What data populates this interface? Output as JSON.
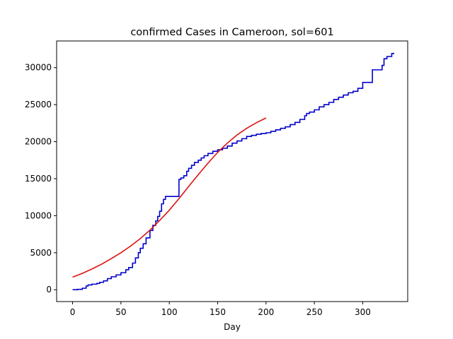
{
  "chart_data": {
    "type": "line",
    "title": "confirmed Cases in Cameroon, sol=601",
    "xlabel": "Day",
    "ylabel": "",
    "xlim": [
      -16.5,
      346.5
    ],
    "ylim": [
      -1600,
      33600
    ],
    "xticks": [
      0,
      50,
      100,
      150,
      200,
      250,
      300
    ],
    "yticks": [
      0,
      5000,
      10000,
      15000,
      20000,
      25000,
      30000
    ],
    "grid": false,
    "legend": "none",
    "series": [
      {
        "color": "#0000cc",
        "step": true,
        "x": [
          0,
          5,
          10,
          14,
          16,
          20,
          25,
          28,
          32,
          36,
          40,
          45,
          50,
          55,
          58,
          62,
          65,
          68,
          70,
          73,
          76,
          80,
          83,
          86,
          88,
          90,
          92,
          94,
          96,
          100,
          105,
          108,
          110,
          112,
          115,
          118,
          120,
          123,
          126,
          130,
          133,
          136,
          140,
          145,
          150,
          155,
          160,
          165,
          170,
          175,
          180,
          185,
          190,
          195,
          200,
          205,
          210,
          215,
          220,
          225,
          230,
          235,
          240,
          242,
          245,
          250,
          255,
          260,
          265,
          270,
          275,
          280,
          285,
          290,
          295,
          300,
          305,
          308,
          310,
          315,
          320,
          322,
          325,
          330,
          332
        ],
        "y": [
          0,
          50,
          200,
          500,
          650,
          750,
          850,
          1000,
          1200,
          1500,
          1750,
          2000,
          2300,
          2700,
          3000,
          3600,
          4300,
          5000,
          5600,
          6200,
          7000,
          8000,
          8700,
          9300,
          9900,
          10600,
          11600,
          12200,
          12600,
          12600,
          12600,
          12600,
          14900,
          15100,
          15400,
          16000,
          16400,
          16800,
          17200,
          17500,
          17800,
          18100,
          18400,
          18700,
          18900,
          19100,
          19400,
          19800,
          20100,
          20400,
          20700,
          20850,
          21000,
          21100,
          21200,
          21400,
          21600,
          21800,
          22000,
          22300,
          22600,
          23000,
          23500,
          23800,
          24000,
          24300,
          24700,
          25000,
          25300,
          25700,
          26000,
          26300,
          26600,
          26800,
          27200,
          28000,
          28000,
          28000,
          29700,
          29700,
          30300,
          31200,
          31500,
          31900,
          32000
        ]
      },
      {
        "color": "#dd1111",
        "step": false,
        "x": [
          0,
          10,
          20,
          30,
          40,
          50,
          60,
          70,
          80,
          90,
          100,
          110,
          120,
          130,
          140,
          150,
          160,
          170,
          180,
          190,
          200
        ],
        "y": [
          1700,
          2200,
          2800,
          3450,
          4200,
          5000,
          5900,
          6900,
          8050,
          9350,
          10750,
          12300,
          13950,
          15550,
          17100,
          18550,
          19800,
          20900,
          21800,
          22550,
          23200
        ]
      }
    ]
  }
}
